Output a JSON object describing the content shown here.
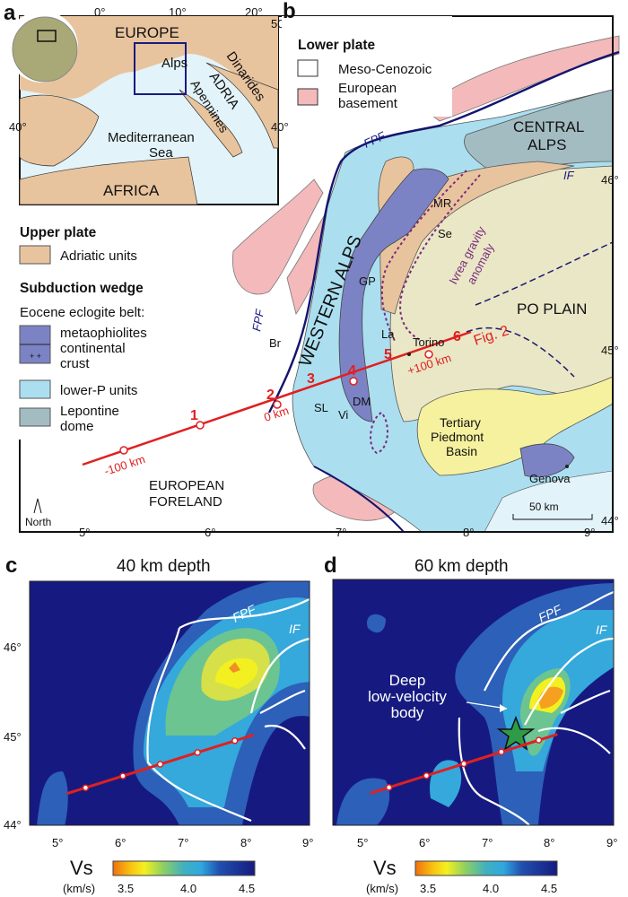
{
  "panel_a": {
    "label": "a",
    "lon_ticks": [
      "0°",
      "10°",
      "20°"
    ],
    "lat_ticks_left": [
      "40°"
    ],
    "lat_ticks_right": [
      "50°",
      "40°"
    ],
    "places": [
      "EUROPE",
      "Alps",
      "Dinarides",
      "ADRIA",
      "Apennines",
      "Mediterranean",
      "Sea",
      "AFRICA"
    ]
  },
  "panel_b": {
    "label": "b",
    "legend_lower_plate": {
      "title": "Lower plate",
      "items": [
        "Meso-Cenozoic",
        "European",
        "basement"
      ]
    },
    "legend_upper_plate": {
      "title": "Upper plate",
      "items": [
        "Adriatic units"
      ]
    },
    "legend_wedge": {
      "title": "Subduction wedge",
      "subtitle": "Eocene eclogite belt:",
      "items": [
        "metaophiolites",
        "continental",
        "crust",
        "lower-P units",
        "Lepontine",
        "dome"
      ]
    },
    "places": [
      "CENTRAL",
      "ALPS",
      "WESTERN ALPS",
      "PO PLAIN",
      "Tertiary",
      "Piedmont",
      "Basin",
      "EUROPEAN",
      "FORELAND",
      "Torino",
      "Genova",
      "Ivrea gravity",
      "anomaly"
    ],
    "abbrev": [
      "FPF",
      "FPF",
      "IF",
      "MR",
      "Se",
      "GP",
      "La",
      "Br",
      "SL",
      "Vi",
      "DM"
    ],
    "profile": {
      "stations": [
        "1",
        "2",
        "3",
        "4",
        "5",
        "6"
      ],
      "distances": [
        "-100 km",
        "0 km",
        "+100 km"
      ],
      "ref": "Fig. 2"
    },
    "north": "North",
    "scale": "50 km",
    "lon_ticks": [
      "5°",
      "6°",
      "7°",
      "8°",
      "9°"
    ],
    "lat_ticks": [
      "44°",
      "45°",
      "46°"
    ]
  },
  "colors": {
    "adriatic": "#e8c49e",
    "meso_cenozoic": "#ffffff",
    "european_basement": "#f4b9ba",
    "metaophiolites": "#7c83c4",
    "lower_p": "#abdff0",
    "lepontine": "#a3bcc2",
    "po_plain": "#e9e7c6",
    "tertiary_basin": "#f5f19e",
    "sea": "#e2f3f9",
    "profile": "#e02020"
  },
  "chart_data": [
    {
      "type": "heatmap",
      "panel": "c",
      "title": "40 km depth",
      "x_ticks": [
        "5°",
        "6°",
        "7°",
        "8°",
        "9°"
      ],
      "y_ticks": [
        "44°",
        "45°",
        "46°"
      ],
      "xlim": [
        4.5,
        9.0
      ],
      "ylim": [
        44.0,
        46.7
      ],
      "overlays": [
        "FPF",
        "IF"
      ],
      "colorbar": {
        "label": "Vs",
        "unit": "(km/s)",
        "ticks": [
          "3.5",
          "4.0",
          "4.5"
        ],
        "range": [
          3.4,
          4.5
        ]
      },
      "profile_points_lon": [
        5.4,
        6.0,
        6.6,
        7.2,
        7.8
      ]
    },
    {
      "type": "heatmap",
      "panel": "d",
      "title": "60 km depth",
      "x_ticks": [
        "5°",
        "6°",
        "7°",
        "8°",
        "9°"
      ],
      "xlim": [
        4.5,
        9.0
      ],
      "ylim": [
        44.0,
        46.7
      ],
      "overlays": [
        "FPF",
        "IF"
      ],
      "annotation": "Deep low-velocity body",
      "annotation_lines": [
        "Deep",
        "low-velocity",
        "body"
      ],
      "colorbar": {
        "label": "Vs",
        "unit": "(km/s)",
        "ticks": [
          "3.5",
          "4.0",
          "4.5"
        ],
        "range": [
          3.4,
          4.5
        ]
      },
      "profile_points_lon": [
        5.4,
        6.0,
        6.6,
        7.2,
        7.8
      ]
    }
  ],
  "panel_c_label": "c",
  "panel_d_label": "d"
}
